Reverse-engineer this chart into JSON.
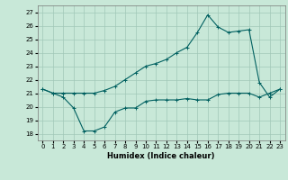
{
  "title": "",
  "xlabel": "Humidex (Indice chaleur)",
  "ylabel": "",
  "xlim": [
    -0.5,
    23.5
  ],
  "ylim": [
    17.5,
    27.5
  ],
  "yticks": [
    18,
    19,
    20,
    21,
    22,
    23,
    24,
    25,
    26,
    27
  ],
  "xticks": [
    0,
    1,
    2,
    3,
    4,
    5,
    6,
    7,
    8,
    9,
    10,
    11,
    12,
    13,
    14,
    15,
    16,
    17,
    18,
    19,
    20,
    21,
    22,
    23
  ],
  "bg_color": "#c8e8d8",
  "line_color": "#006060",
  "grid_color": "#a0c8b8",
  "series1_x": [
    0,
    1,
    2,
    3,
    4,
    5,
    6,
    7,
    8,
    9,
    10,
    11,
    12,
    13,
    14,
    15,
    16,
    17,
    18,
    19,
    20,
    21,
    22,
    23
  ],
  "series1_y": [
    21.3,
    21.0,
    20.7,
    19.9,
    18.2,
    18.2,
    18.5,
    19.6,
    19.9,
    19.9,
    20.4,
    20.5,
    20.5,
    20.5,
    20.6,
    20.5,
    20.5,
    20.9,
    21.0,
    21.0,
    21.0,
    20.7,
    21.0,
    21.3
  ],
  "series2_x": [
    0,
    1,
    2,
    3,
    4,
    5,
    6,
    7,
    8,
    9,
    10,
    11,
    12,
    13,
    14,
    15,
    16,
    17,
    18,
    19,
    20,
    21,
    22,
    23
  ],
  "series2_y": [
    21.3,
    21.0,
    21.0,
    21.0,
    21.0,
    21.0,
    21.2,
    21.5,
    22.0,
    22.5,
    23.0,
    23.2,
    23.5,
    24.0,
    24.4,
    25.5,
    26.8,
    25.9,
    25.5,
    25.6,
    25.7,
    21.8,
    20.7,
    21.3
  ]
}
